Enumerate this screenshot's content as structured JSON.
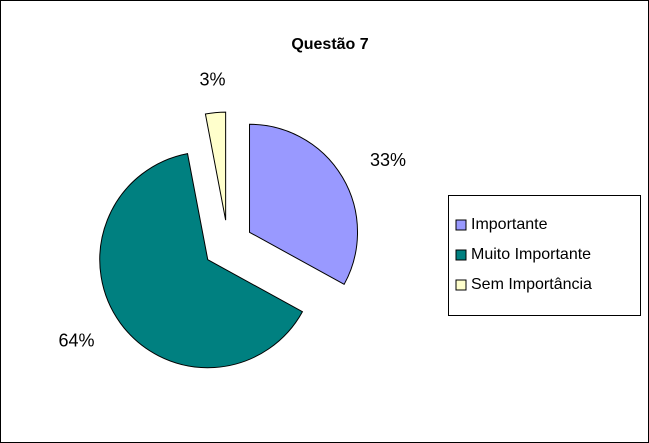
{
  "chart_data": {
    "type": "pie",
    "title": "Questão 7",
    "categories": [
      "Importante",
      "Muito Importante",
      "Sem Importância"
    ],
    "values": [
      33,
      64,
      3
    ],
    "value_labels": [
      "33%",
      "64%",
      "3%"
    ],
    "colors": [
      "#9999ff",
      "#008080",
      "#ffffcc"
    ],
    "legend": "right"
  }
}
